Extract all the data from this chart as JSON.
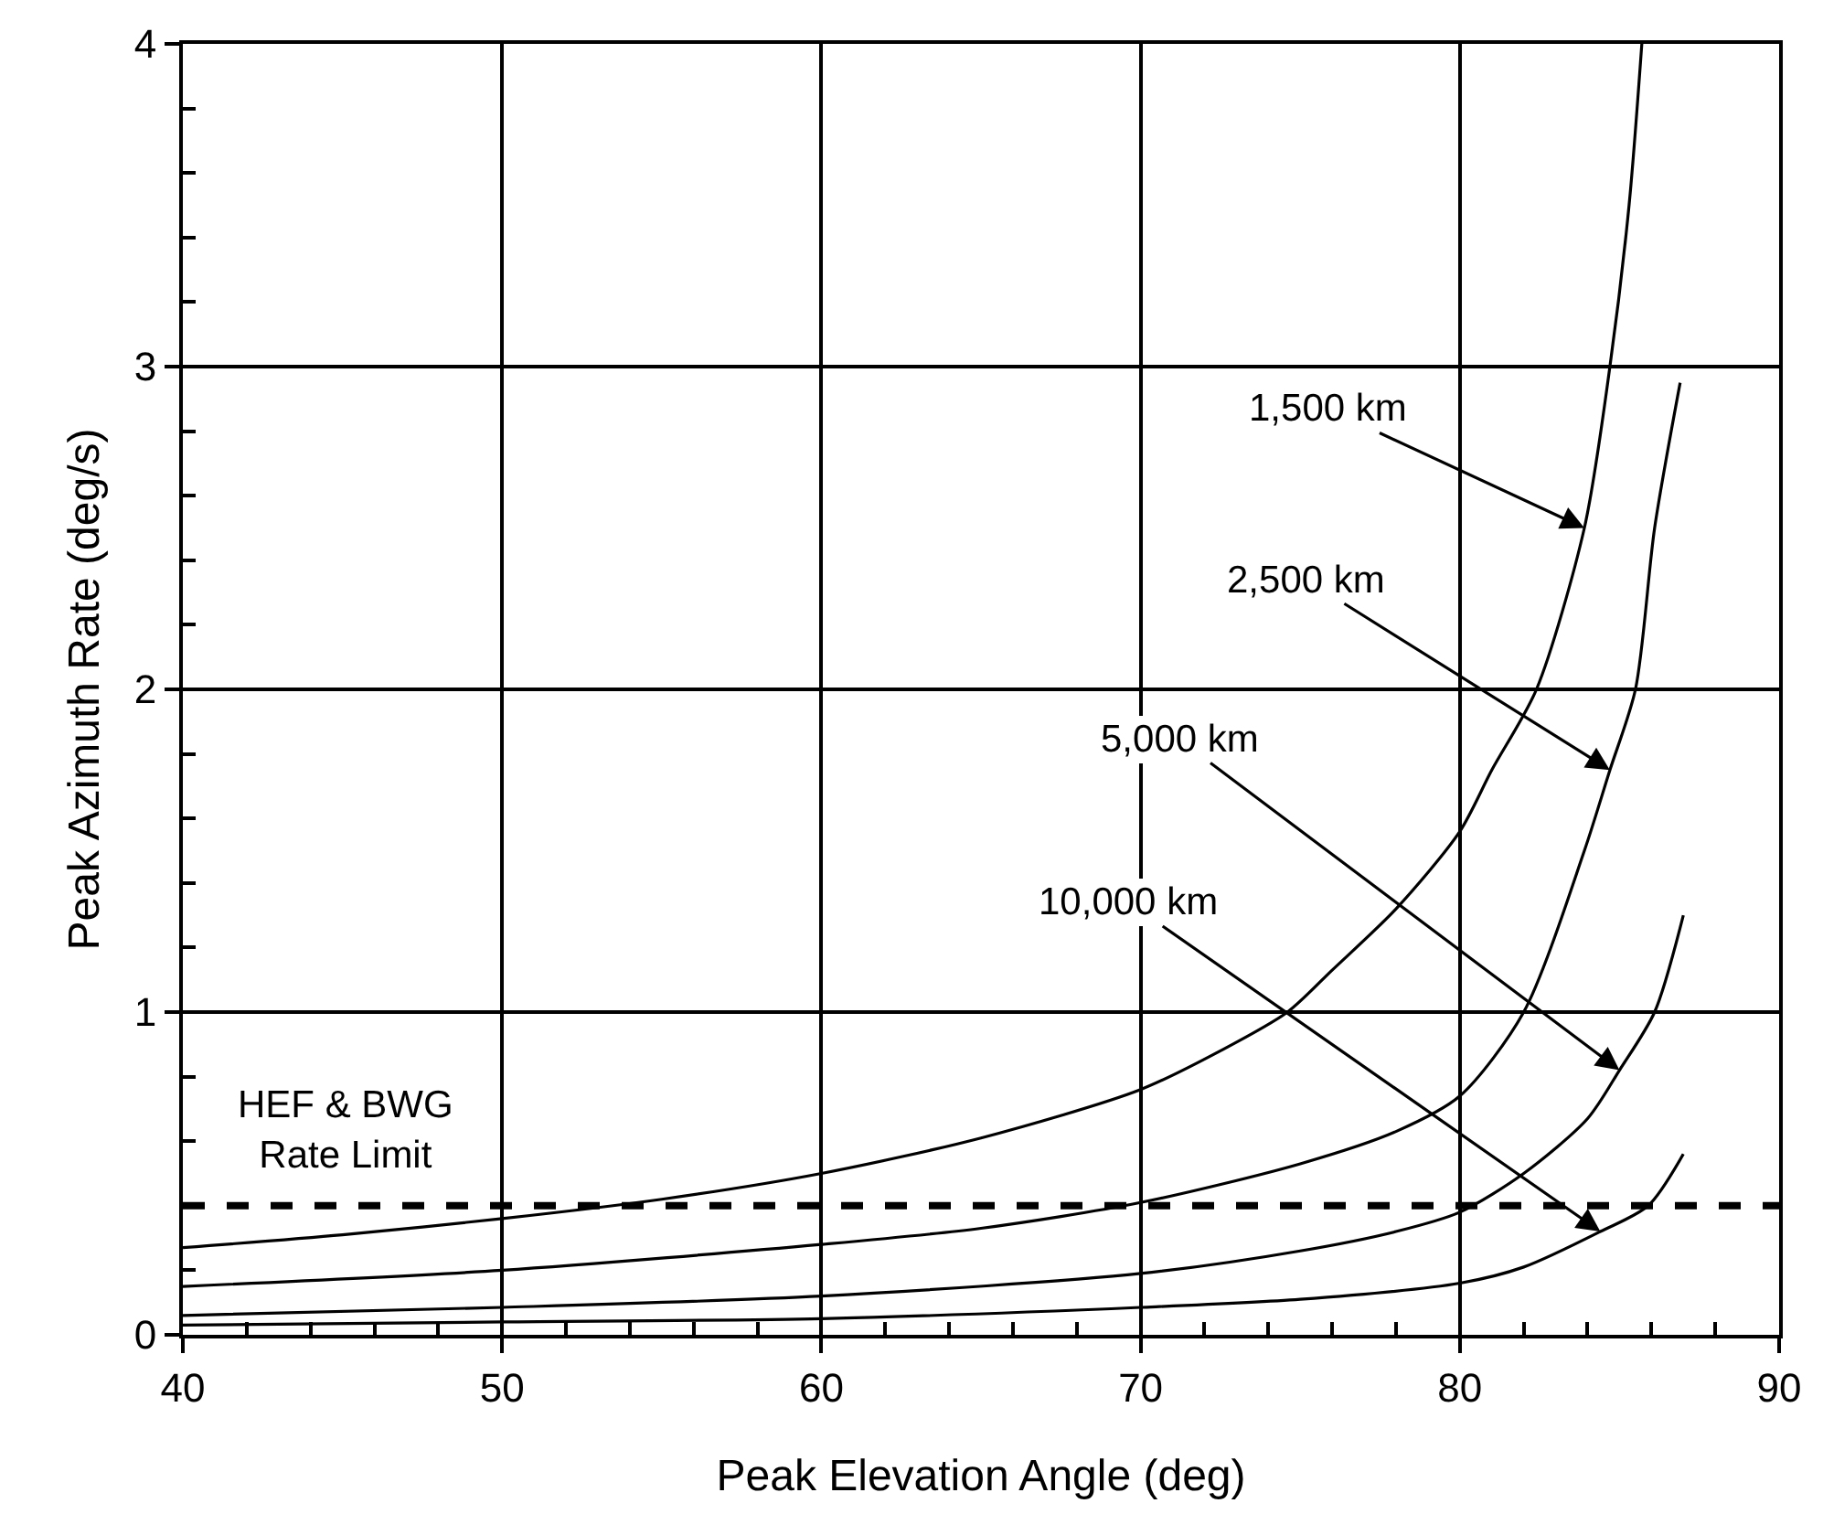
{
  "chart_data": {
    "type": "line",
    "xlabel": "Peak Elevation Angle (deg)",
    "ylabel": "Peak Azimuth Rate (deg/s)",
    "xlim": [
      40,
      90
    ],
    "ylim": [
      0,
      4
    ],
    "xticks": [
      40,
      {
        "value": 42,
        "label": null
      },
      {
        "value": 44,
        "label": null
      },
      {
        "value": 46,
        "label": null
      },
      {
        "value": 48,
        "label": null
      },
      50,
      {
        "value": 52,
        "label": null
      },
      {
        "value": 54,
        "label": null
      },
      {
        "value": 56,
        "label": null
      },
      {
        "value": 58,
        "label": null
      },
      60,
      {
        "value": 62,
        "label": null
      },
      {
        "value": 64,
        "label": null
      },
      {
        "value": 66,
        "label": null
      },
      {
        "value": 68,
        "label": null
      },
      70,
      {
        "value": 72,
        "label": null
      },
      {
        "value": 74,
        "label": null
      },
      {
        "value": 76,
        "label": null
      },
      {
        "value": 78,
        "label": null
      },
      80,
      {
        "value": 82,
        "label": null
      },
      {
        "value": 84,
        "label": null
      },
      {
        "value": 86,
        "label": null
      },
      {
        "value": 88,
        "label": null
      },
      90
    ],
    "yticks": [
      0,
      {
        "value": 0.2,
        "label": null
      },
      {
        "value": 0.4,
        "label": null
      },
      {
        "value": 0.6,
        "label": null
      },
      {
        "value": 0.8,
        "label": null
      },
      1,
      {
        "value": 1.2,
        "label": null
      },
      {
        "value": 1.4,
        "label": null
      },
      {
        "value": 1.6,
        "label": null
      },
      {
        "value": 1.8,
        "label": null
      },
      2,
      {
        "value": 2.2,
        "label": null
      },
      {
        "value": 2.4,
        "label": null
      },
      {
        "value": 2.6,
        "label": null
      },
      {
        "value": 2.8,
        "label": null
      },
      3,
      {
        "value": 3.2,
        "label": null
      },
      {
        "value": 3.4,
        "label": null
      },
      {
        "value": 3.6,
        "label": null
      },
      {
        "value": 3.8,
        "label": null
      },
      4
    ],
    "grid": true,
    "marker": "none",
    "line_style": "solid",
    "series": [
      {
        "color": "#000000",
        "x": [
          40,
          45,
          50,
          55,
          60,
          65,
          70,
          72.5,
          74.6,
          76,
          78,
          80,
          81,
          82.4,
          83.9,
          84.7,
          85.3,
          85.7
        ],
        "values": [
          0.27,
          0.31,
          0.36,
          0.42,
          0.5,
          0.61,
          0.76,
          0.88,
          1.0,
          1.13,
          1.32,
          1.56,
          1.75,
          2.0,
          2.5,
          3.0,
          3.5,
          4.0
        ]
      },
      {
        "color": "#000000",
        "x": [
          40,
          50,
          60,
          65,
          70,
          75,
          78,
          80,
          82,
          83.9,
          84.7,
          85.5,
          86.1,
          86.9
        ],
        "values": [
          0.15,
          0.2,
          0.28,
          0.33,
          0.41,
          0.53,
          0.63,
          0.74,
          1.0,
          1.5,
          1.75,
          2.0,
          2.5,
          2.95
        ]
      },
      {
        "color": "#000000",
        "x": [
          40,
          50,
          60,
          70,
          75,
          78,
          80,
          82,
          84,
          85,
          86.1,
          87
        ],
        "values": [
          0.06,
          0.085,
          0.12,
          0.19,
          0.26,
          0.32,
          0.38,
          0.5,
          0.67,
          0.82,
          1.0,
          1.3
        ]
      },
      {
        "color": "#000000",
        "x": [
          40,
          50,
          60,
          70,
          75,
          80,
          82,
          84.4,
          85.9,
          87
        ],
        "values": [
          0.03,
          0.04,
          0.05,
          0.085,
          0.11,
          0.16,
          0.21,
          0.32,
          0.4,
          0.56
        ]
      }
    ],
    "ref_lines": [
      {
        "axis": "y",
        "value": 0.4,
        "label": "HEF & BWG\nRate Limit",
        "color": "#000000",
        "line_style": "dashed"
      }
    ],
    "annotations": [
      {
        "text": "1,500 km",
        "x": 83.9,
        "y": 2.5
      },
      {
        "text": "2,500 km",
        "x": 84.7,
        "y": 1.75
      },
      {
        "text": "5,000 km",
        "x": 85,
        "y": 0.82
      },
      {
        "text": "10,000 km",
        "x": 84.4,
        "y": 0.32
      }
    ]
  }
}
